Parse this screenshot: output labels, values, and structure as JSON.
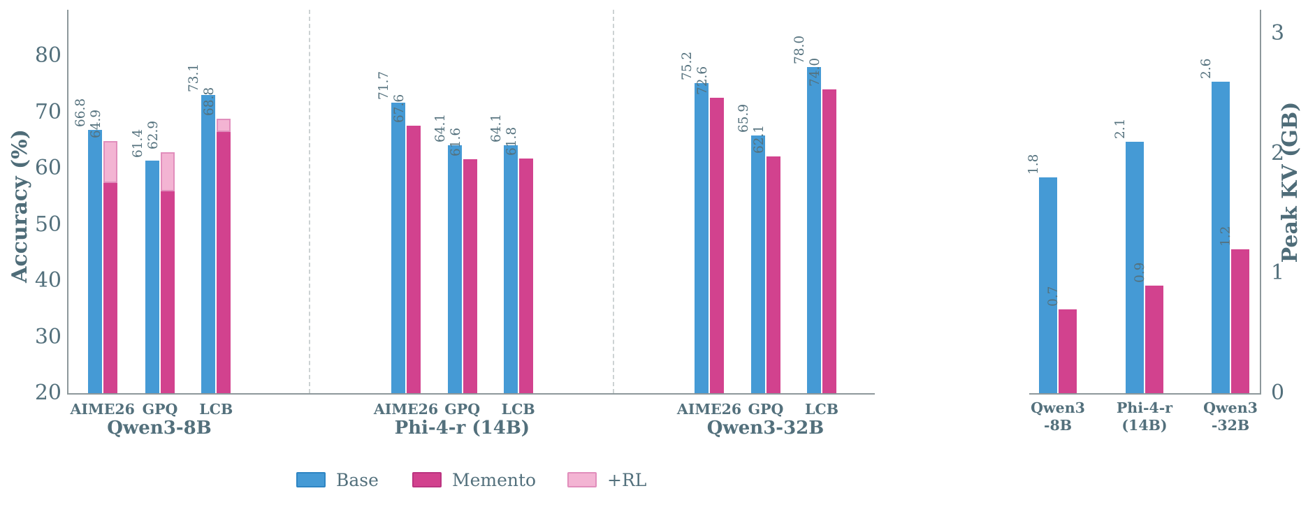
{
  "chart_data": [
    {
      "type": "bar",
      "panel": "accuracy",
      "ylabel": "Accuracy (%)",
      "ylim": [
        20,
        88
      ],
      "yticks": [
        "20",
        "30",
        "40",
        "50",
        "60",
        "70",
        "80"
      ],
      "grid": false,
      "benchmarks": [
        "AIME26",
        "GPQ",
        "LCB"
      ],
      "groups": [
        {
          "model": "Qwen3-8B",
          "base": [
            66.8,
            61.4,
            73.1
          ],
          "memento": [
            57.4,
            55.9,
            66.5
          ],
          "show_memento_label": false,
          "rl": [
            64.9,
            62.9,
            68.8
          ]
        },
        {
          "model": "Phi-4-r (14B)",
          "base": [
            71.7,
            64.1,
            64.1
          ],
          "memento": [
            67.6,
            61.6,
            61.8
          ],
          "show_memento_label": true,
          "rl": null
        },
        {
          "model": "Qwen3-32B",
          "base": [
            75.2,
            65.9,
            78.0
          ],
          "memento": [
            72.6,
            62.1,
            74.0
          ],
          "show_memento_label": true,
          "rl": null
        }
      ]
    },
    {
      "type": "bar",
      "panel": "peak_kv",
      "ylabel": "Peak KV (GB)",
      "ylim": [
        0,
        3.2
      ],
      "yticks": [
        "0",
        "1",
        "2",
        "3"
      ],
      "grid": false,
      "categories": [
        [
          "Qwen3",
          "-8B"
        ],
        [
          "Phi-4-r",
          "(14B)"
        ],
        [
          "Qwen3",
          "-32B"
        ]
      ],
      "series": [
        {
          "name": "Base",
          "values": [
            1.8,
            2.1,
            2.6
          ]
        },
        {
          "name": "Memento",
          "values": [
            0.7,
            0.9,
            1.2
          ]
        }
      ]
    }
  ],
  "legend": {
    "position": "bottom",
    "items": [
      {
        "label": "Base",
        "color": "#459ad5",
        "border": "#2e85c3"
      },
      {
        "label": "Memento",
        "color": "#d2428e",
        "border": "#bb3480"
      },
      {
        "label": "+RL",
        "color": "#f3b4d3",
        "border": "#e18ebc"
      }
    ]
  },
  "colors": {
    "base": "#459ad5",
    "memento": "#d2428e",
    "rl": "#f3b4d3",
    "rl_border": "#e18ebc",
    "text": "#54717d",
    "axis": "#8d989b",
    "separator": "#ccd2d3"
  }
}
